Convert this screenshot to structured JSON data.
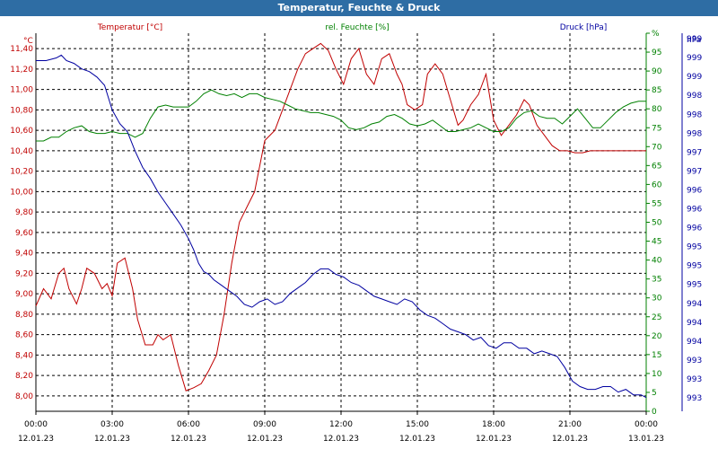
{
  "title": "Temperatur, Feuchte & Druck",
  "colors": {
    "temperature": "#c00000",
    "humidity": "#008000",
    "pressure": "#0000a0",
    "grid": "#000000",
    "axis_text": "#000000"
  },
  "chart_data": {
    "type": "line",
    "title": "Temperatur, Feuchte & Druck",
    "x_ticks": [
      {
        "time": "00:00",
        "date": "12.01.23"
      },
      {
        "time": "03:00",
        "date": "12.01.23"
      },
      {
        "time": "06:00",
        "date": "12.01.23"
      },
      {
        "time": "09:00",
        "date": "12.01.23"
      },
      {
        "time": "12:00",
        "date": "12.01.23"
      },
      {
        "time": "15:00",
        "date": "12.01.23"
      },
      {
        "time": "18:00",
        "date": "12.01.23"
      },
      {
        "time": "21:00",
        "date": "12.01.23"
      },
      {
        "time": "00:00",
        "date": "13.01.23"
      }
    ],
    "x_range_hours": [
      0,
      24
    ],
    "axes": {
      "temperature": {
        "label": "Temperatur [°C]",
        "unit": "°C",
        "range": [
          7.85,
          11.55
        ],
        "tick_labels": [
          "8,00",
          "8,20",
          "8,40",
          "8,60",
          "8,80",
          "9,00",
          "9,20",
          "9,40",
          "9,60",
          "9,80",
          "10,00",
          "10,20",
          "10,40",
          "10,60",
          "10,80",
          "11,00",
          "11,20",
          "11,40"
        ],
        "tick_values": [
          8.0,
          8.2,
          8.4,
          8.6,
          8.8,
          9.0,
          9.2,
          9.4,
          9.6,
          9.8,
          10.0,
          10.2,
          10.4,
          10.6,
          10.8,
          11.0,
          11.2,
          11.4
        ]
      },
      "humidity": {
        "label": "rel. Feuchte [%]",
        "unit": "%",
        "range": [
          0,
          100
        ],
        "tick_labels": [
          "0",
          "5",
          "10",
          "15",
          "20",
          "25",
          "30",
          "35",
          "40",
          "45",
          "50",
          "55",
          "60",
          "65",
          "70",
          "75",
          "80",
          "85",
          "90",
          "95",
          "%"
        ],
        "tick_values": [
          0,
          5,
          10,
          15,
          20,
          25,
          30,
          35,
          40,
          45,
          50,
          55,
          60,
          65,
          70,
          75,
          80,
          85,
          90,
          95,
          100
        ]
      },
      "pressure": {
        "label": "Druck [hPa]",
        "unit": "hPa",
        "range": [
          992.6,
          999.5
        ],
        "tick_labels": [
          "993",
          "993",
          "993",
          "994",
          "994",
          "994",
          "995",
          "995",
          "995",
          "996",
          "996",
          "996",
          "997",
          "997",
          "998",
          "998",
          "998",
          "999",
          "999",
          "999",
          "hPa"
        ]
      }
    },
    "series": [
      {
        "name": "Temperatur [°C]",
        "axis": "temperature",
        "x": [
          0,
          0.3,
          0.6,
          0.9,
          1.1,
          1.3,
          1.6,
          1.8,
          2.0,
          2.3,
          2.6,
          2.8,
          3.0,
          3.2,
          3.5,
          3.8,
          4.0,
          4.3,
          4.6,
          4.8,
          5.0,
          5.3,
          5.6,
          5.9,
          6.2,
          6.5,
          6.8,
          7.1,
          7.4,
          7.7,
          8.0,
          8.3,
          8.6,
          9.0,
          9.4,
          9.7,
          10.0,
          10.3,
          10.6,
          10.9,
          11.2,
          11.5,
          11.8,
          12.1,
          12.4,
          12.7,
          13.0,
          13.3,
          13.6,
          13.9,
          14.2,
          14.4,
          14.6,
          14.9,
          15.2,
          15.4,
          15.7,
          16.0,
          16.3,
          16.6,
          16.8,
          17.1,
          17.4,
          17.7,
          18.0,
          18.3,
          18.6,
          18.9,
          19.2,
          19.4,
          19.7,
          20.0,
          20.3,
          20.6,
          20.9,
          21.2,
          21.5,
          21.8,
          22.1,
          22.4,
          22.7,
          23.0,
          23.3,
          23.6,
          24.0
        ],
        "values": [
          8.88,
          9.05,
          8.95,
          9.2,
          9.25,
          9.05,
          8.9,
          9.05,
          9.25,
          9.2,
          9.05,
          9.1,
          8.98,
          9.3,
          9.35,
          9.05,
          8.75,
          8.5,
          8.5,
          8.6,
          8.55,
          8.6,
          8.3,
          8.05,
          8.08,
          8.12,
          8.25,
          8.4,
          8.8,
          9.3,
          9.7,
          9.85,
          10.0,
          10.5,
          10.6,
          10.8,
          11.0,
          11.2,
          11.35,
          11.4,
          11.45,
          11.38,
          11.2,
          11.05,
          11.3,
          11.4,
          11.15,
          11.05,
          11.3,
          11.35,
          11.15,
          11.05,
          10.85,
          10.8,
          10.85,
          11.15,
          11.25,
          11.15,
          10.9,
          10.65,
          10.7,
          10.85,
          10.95,
          11.15,
          10.7,
          10.55,
          10.65,
          10.75,
          10.9,
          10.85,
          10.65,
          10.55,
          10.45,
          10.4,
          10.4,
          10.38,
          10.38,
          10.4,
          10.4,
          10.4,
          10.4,
          10.4,
          10.4,
          10.4,
          10.4
        ]
      },
      {
        "name": "rel. Feuchte [%]",
        "axis": "humidity",
        "x": [
          0,
          0.3,
          0.6,
          0.9,
          1.2,
          1.5,
          1.8,
          2.1,
          2.4,
          2.7,
          3.0,
          3.3,
          3.6,
          3.9,
          4.2,
          4.5,
          4.8,
          5.1,
          5.4,
          5.7,
          6.0,
          6.3,
          6.6,
          6.9,
          7.2,
          7.5,
          7.8,
          8.1,
          8.4,
          8.7,
          9.0,
          9.3,
          9.6,
          9.9,
          10.2,
          10.5,
          10.8,
          11.1,
          11.4,
          11.7,
          12.0,
          12.3,
          12.6,
          12.9,
          13.2,
          13.5,
          13.8,
          14.1,
          14.4,
          14.7,
          15.0,
          15.3,
          15.6,
          15.9,
          16.2,
          16.5,
          16.8,
          17.1,
          17.4,
          17.7,
          18.0,
          18.3,
          18.6,
          18.9,
          19.2,
          19.5,
          19.8,
          20.1,
          20.4,
          20.7,
          21.0,
          21.3,
          21.6,
          21.9,
          22.2,
          22.5,
          22.8,
          23.1,
          23.4,
          23.7,
          24.0
        ],
        "values": [
          71.5,
          71.5,
          72.5,
          72.5,
          74.0,
          75.0,
          75.5,
          74.0,
          73.5,
          73.5,
          74.0,
          73.5,
          73.5,
          72.5,
          73.5,
          77.5,
          80.5,
          81.0,
          80.5,
          80.5,
          80.5,
          82.0,
          84.0,
          85.0,
          84.0,
          83.5,
          84.0,
          83.0,
          84.0,
          84.0,
          83.0,
          82.5,
          82.0,
          81.0,
          80.0,
          79.5,
          79.0,
          79.0,
          78.5,
          78.0,
          77.0,
          75.0,
          74.5,
          75.0,
          76.0,
          76.5,
          78.0,
          78.5,
          77.5,
          76.0,
          75.5,
          76.0,
          77.0,
          75.5,
          74.0,
          74.0,
          74.5,
          75.0,
          76.0,
          75.0,
          74.0,
          74.0,
          75.0,
          77.5,
          79.0,
          79.5,
          78.0,
          77.5,
          77.5,
          76.0,
          78.0,
          80.0,
          77.5,
          75.0,
          75.0,
          77.0,
          79.0,
          80.5,
          81.5,
          82.0,
          82.0
        ]
      },
      {
        "name": "Druck [hPa]",
        "axis": "pressure",
        "x": [
          0,
          0.4,
          0.8,
          1.0,
          1.2,
          1.5,
          1.8,
          2.1,
          2.4,
          2.7,
          3.0,
          3.3,
          3.6,
          3.9,
          4.2,
          4.5,
          4.8,
          5.1,
          5.4,
          5.7,
          6.0,
          6.2,
          6.4,
          6.6,
          6.8,
          7.0,
          7.3,
          7.6,
          7.9,
          8.2,
          8.5,
          8.8,
          9.1,
          9.4,
          9.7,
          10.0,
          10.3,
          10.6,
          10.9,
          11.2,
          11.5,
          11.8,
          12.1,
          12.4,
          12.7,
          13.0,
          13.3,
          13.6,
          13.9,
          14.2,
          14.5,
          14.8,
          15.1,
          15.4,
          15.7,
          16.0,
          16.3,
          16.6,
          16.9,
          17.2,
          17.5,
          17.8,
          18.1,
          18.4,
          18.7,
          19.0,
          19.3,
          19.6,
          19.9,
          20.2,
          20.5,
          20.8,
          21.1,
          21.4,
          21.7,
          22.0,
          22.3,
          22.6,
          22.9,
          23.2,
          23.5,
          23.8,
          24.0
        ],
        "values": [
          999.0,
          999.0,
          999.05,
          999.1,
          999.0,
          998.95,
          998.85,
          998.8,
          998.7,
          998.55,
          998.1,
          997.85,
          997.7,
          997.35,
          997.05,
          996.85,
          996.6,
          996.4,
          996.2,
          996.0,
          995.75,
          995.55,
          995.3,
          995.15,
          995.1,
          995.0,
          994.9,
          994.8,
          994.7,
          994.55,
          994.5,
          994.6,
          994.65,
          994.55,
          994.6,
          994.75,
          994.85,
          994.95,
          995.1,
          995.2,
          995.2,
          995.1,
          995.05,
          994.95,
          994.9,
          994.8,
          994.7,
          994.65,
          994.6,
          994.55,
          994.65,
          994.6,
          994.45,
          994.35,
          994.3,
          994.2,
          994.1,
          994.05,
          994.0,
          993.9,
          993.95,
          993.8,
          993.75,
          993.85,
          993.85,
          993.75,
          993.75,
          993.65,
          993.7,
          993.65,
          993.6,
          993.4,
          993.15,
          993.05,
          993.0,
          993.0,
          993.05,
          993.05,
          992.95,
          993.0,
          992.9,
          992.9,
          992.85
        ]
      }
    ]
  }
}
